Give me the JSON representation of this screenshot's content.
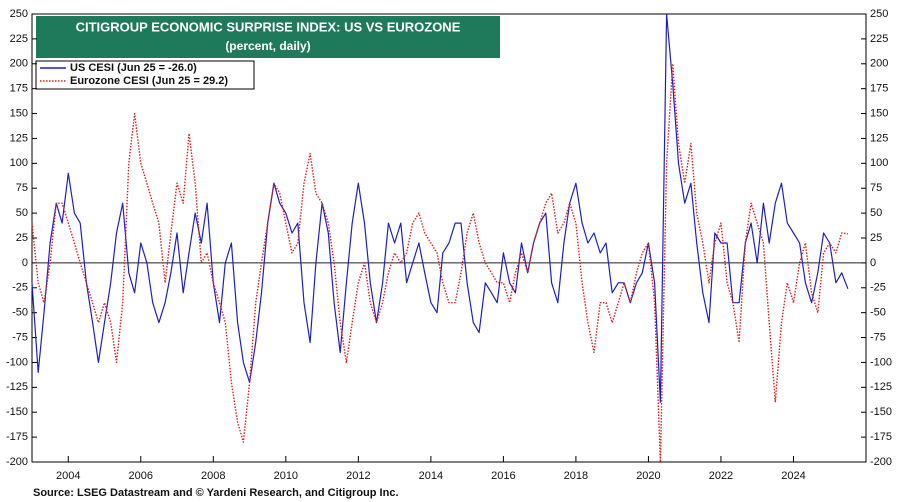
{
  "chart_data": {
    "type": "line",
    "title": "CITIGROUP ECONOMIC SURPRISE INDEX: US VS EUROZONE",
    "subtitle": "(percent, daily)",
    "source": "Source: LSEG Datastream and © Yardeni Research, and Citigroup Inc.",
    "x": [
      2003.0,
      2003.17,
      2003.33,
      2003.5,
      2003.67,
      2003.83,
      2004.0,
      2004.17,
      2004.33,
      2004.5,
      2004.67,
      2004.83,
      2005.0,
      2005.17,
      2005.33,
      2005.5,
      2005.67,
      2005.83,
      2006.0,
      2006.17,
      2006.33,
      2006.5,
      2006.67,
      2006.83,
      2007.0,
      2007.17,
      2007.33,
      2007.5,
      2007.67,
      2007.83,
      2008.0,
      2008.17,
      2008.33,
      2008.5,
      2008.67,
      2008.83,
      2009.0,
      2009.17,
      2009.33,
      2009.5,
      2009.67,
      2009.83,
      2010.0,
      2010.17,
      2010.33,
      2010.5,
      2010.67,
      2010.83,
      2011.0,
      2011.17,
      2011.33,
      2011.5,
      2011.67,
      2011.83,
      2012.0,
      2012.17,
      2012.33,
      2012.5,
      2012.67,
      2012.83,
      2013.0,
      2013.17,
      2013.33,
      2013.5,
      2013.67,
      2013.83,
      2014.0,
      2014.17,
      2014.33,
      2014.5,
      2014.67,
      2014.83,
      2015.0,
      2015.17,
      2015.33,
      2015.5,
      2015.67,
      2015.83,
      2016.0,
      2016.17,
      2016.33,
      2016.5,
      2016.67,
      2016.83,
      2017.0,
      2017.17,
      2017.33,
      2017.5,
      2017.67,
      2017.83,
      2018.0,
      2018.17,
      2018.33,
      2018.5,
      2018.67,
      2018.83,
      2019.0,
      2019.17,
      2019.33,
      2019.5,
      2019.67,
      2019.83,
      2020.0,
      2020.17,
      2020.33,
      2020.5,
      2020.67,
      2020.83,
      2021.0,
      2021.17,
      2021.33,
      2021.5,
      2021.67,
      2021.83,
      2022.0,
      2022.17,
      2022.33,
      2022.5,
      2022.67,
      2022.83,
      2023.0,
      2023.17,
      2023.33,
      2023.5,
      2023.67,
      2023.83,
      2024.0,
      2024.17,
      2024.33,
      2024.5,
      2024.67,
      2024.83,
      2025.0,
      2025.17,
      2025.33,
      2025.5
    ],
    "series": [
      {
        "name": "US CESI (Jun 25 = -26.0)",
        "color": "#1f1fbf",
        "dashed": false,
        "values": [
          -20,
          -110,
          -50,
          20,
          60,
          40,
          90,
          50,
          40,
          -20,
          -60,
          -100,
          -60,
          -20,
          30,
          60,
          -10,
          -30,
          20,
          0,
          -40,
          -60,
          -40,
          -10,
          30,
          -30,
          10,
          50,
          20,
          60,
          -20,
          -60,
          0,
          20,
          -60,
          -100,
          -120,
          -80,
          -30,
          40,
          80,
          60,
          50,
          30,
          40,
          -40,
          -80,
          0,
          60,
          30,
          -40,
          -90,
          -20,
          40,
          80,
          40,
          -20,
          -60,
          -20,
          40,
          20,
          40,
          -20,
          0,
          20,
          -10,
          -40,
          -50,
          10,
          20,
          40,
          40,
          -20,
          -60,
          -70,
          -20,
          -30,
          -40,
          10,
          -20,
          -30,
          20,
          -10,
          20,
          40,
          50,
          -20,
          -40,
          20,
          60,
          80,
          40,
          20,
          30,
          10,
          20,
          -30,
          -20,
          -20,
          -40,
          -20,
          -10,
          20,
          -20,
          -140,
          250,
          180,
          100,
          60,
          80,
          20,
          -30,
          -60,
          30,
          20,
          20,
          -40,
          -40,
          20,
          40,
          0,
          60,
          20,
          60,
          80,
          40,
          30,
          20,
          -20,
          -40,
          -10,
          30,
          20,
          -20,
          -10,
          -26
        ]
      },
      {
        "name": "Eurozone CESI (Jun 25 = 29.2)",
        "color": "#d42020",
        "dashed": true,
        "values": [
          40,
          -20,
          -40,
          0,
          60,
          60,
          40,
          20,
          0,
          -20,
          -40,
          -60,
          -40,
          -60,
          -100,
          -40,
          100,
          150,
          100,
          80,
          60,
          40,
          -20,
          30,
          80,
          60,
          130,
          80,
          0,
          10,
          -20,
          -40,
          -60,
          -120,
          -160,
          -180,
          -120,
          -40,
          0,
          40,
          80,
          70,
          40,
          10,
          20,
          80,
          110,
          70,
          60,
          40,
          0,
          -60,
          -100,
          -60,
          -20,
          0,
          -40,
          -60,
          -40,
          -10,
          10,
          0,
          10,
          40,
          50,
          30,
          20,
          10,
          -20,
          -40,
          -40,
          -10,
          30,
          50,
          20,
          0,
          -10,
          -20,
          -20,
          -40,
          -10,
          10,
          -10,
          20,
          40,
          60,
          70,
          30,
          40,
          60,
          40,
          -20,
          -60,
          -90,
          -40,
          -40,
          -60,
          -40,
          -20,
          -40,
          -10,
          10,
          20,
          -40,
          -200,
          100,
          200,
          120,
          80,
          120,
          50,
          20,
          -20,
          20,
          40,
          -20,
          -40,
          -80,
          20,
          60,
          40,
          20,
          -60,
          -140,
          -60,
          -20,
          -40,
          0,
          20,
          -30,
          -50,
          10,
          20,
          10,
          30,
          29.2
        ]
      }
    ],
    "xlim": [
      2003,
      2026
    ],
    "xticks": [
      2004,
      2006,
      2008,
      2010,
      2012,
      2014,
      2016,
      2018,
      2020,
      2022,
      2024
    ],
    "ylim": [
      -200,
      250
    ],
    "yticks": [
      -200,
      -175,
      -150,
      -125,
      -100,
      -75,
      -50,
      -25,
      0,
      25,
      50,
      75,
      100,
      125,
      150,
      175,
      200,
      225,
      250
    ],
    "y2lim": [
      -200,
      250
    ],
    "y2ticks": [
      -200,
      -175,
      -150,
      -125,
      -100,
      -75,
      -50,
      -25,
      0,
      25,
      50,
      75,
      100,
      125,
      150,
      175,
      200,
      225,
      250
    ],
    "grid": false
  }
}
